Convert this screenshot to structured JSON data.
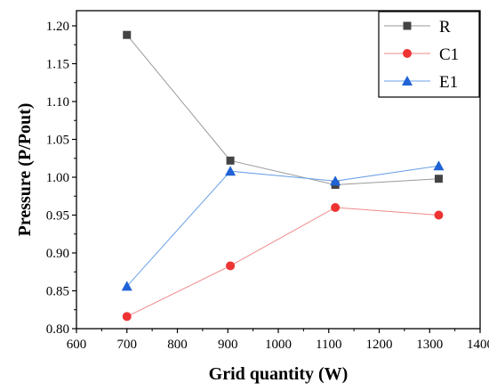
{
  "chart_data": {
    "type": "line",
    "xlabel": "Grid quantity (W)",
    "ylabel": "Pressure (P/Pout)",
    "xlim": [
      600,
      1400
    ],
    "ylim": [
      0.8,
      1.22
    ],
    "xticks": [
      600,
      700,
      800,
      900,
      1000,
      1100,
      1200,
      1300,
      1400
    ],
    "yticks": [
      "0.80",
      "0.85",
      "0.90",
      "0.95",
      "1.00",
      "1.05",
      "1.10",
      "1.15",
      "1.20"
    ],
    "x": [
      700,
      905,
      1113,
      1318
    ],
    "legend_position": "top-right",
    "grid": false,
    "series": [
      {
        "name": "R",
        "marker": "square",
        "color": "#444444",
        "line_color": "#9a9a9a",
        "values": [
          1.188,
          1.022,
          0.99,
          0.998
        ]
      },
      {
        "name": "C1",
        "marker": "circle",
        "color": "#ee3333",
        "line_color": "#f08a8a",
        "values": [
          0.816,
          0.883,
          0.96,
          0.95
        ]
      },
      {
        "name": "E1",
        "marker": "triangle",
        "color": "#1f63d6",
        "line_color": "#6aa0e6",
        "values": [
          0.856,
          1.008,
          0.995,
          1.015
        ]
      }
    ]
  }
}
